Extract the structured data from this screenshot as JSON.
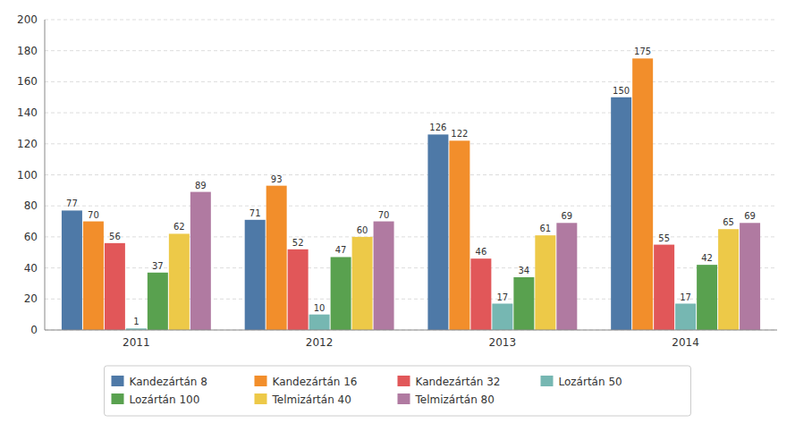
{
  "chart_data": {
    "type": "bar",
    "categories": [
      "2011",
      "2012",
      "2013",
      "2014"
    ],
    "series": [
      {
        "name": "Kandezártán 8",
        "values": [
          77,
          71,
          126,
          150
        ]
      },
      {
        "name": "Kandezártán 16",
        "values": [
          70,
          93,
          122,
          175
        ]
      },
      {
        "name": "Kandezártán 32",
        "values": [
          56,
          52,
          46,
          55
        ]
      },
      {
        "name": "Lozártán 50",
        "values": [
          1,
          10,
          17,
          17
        ]
      },
      {
        "name": "Lozártán 100",
        "values": [
          37,
          47,
          34,
          42
        ]
      },
      {
        "name": "Telmizártán 40",
        "values": [
          62,
          60,
          61,
          65
        ]
      },
      {
        "name": "Telmizártán 80",
        "values": [
          89,
          70,
          69,
          69
        ]
      }
    ],
    "ylim": [
      0,
      200
    ],
    "yticks": [
      0,
      20,
      40,
      60,
      80,
      100,
      120,
      140,
      160,
      180,
      200
    ],
    "grid": true,
    "legend": "bottom",
    "data_labels": true
  }
}
